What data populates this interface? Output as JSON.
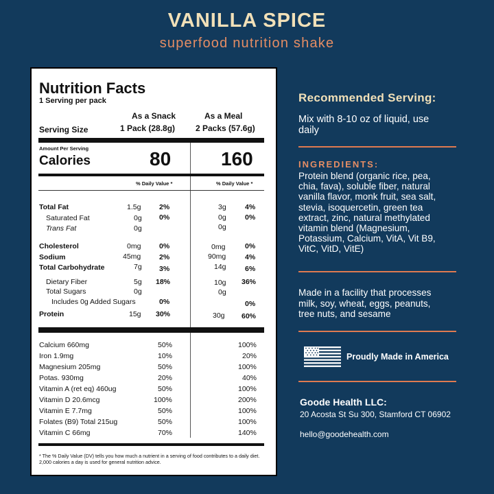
{
  "header": {
    "title": "VANILLA SPICE",
    "subtitle": "superfood nutrition shake"
  },
  "label": {
    "title": "Nutrition Facts",
    "servings": "1 Serving per pack",
    "col_snack_title": "As a Snack",
    "col_snack_sub": "1 Pack (28.8g)",
    "col_meal_title": "As a Meal",
    "col_meal_sub": "2 Packs (57.6g)",
    "serving_size": "Serving Size",
    "amount_per_serving": "Amount Per Serving",
    "calories_label": "Calories",
    "calories_snack": "80",
    "calories_meal": "160",
    "dv_header": "% Daily Value *",
    "nutrients": [
      {
        "name": "Total Fat",
        "s_amt": "1.5g",
        "s_dv": "2%",
        "m_amt": "3g",
        "m_dv": "4%"
      },
      {
        "name": "Saturated Fat",
        "s_amt": "0g",
        "s_dv": "0%",
        "m_amt": "0g",
        "m_dv": "0%"
      },
      {
        "name": "Trans Fat",
        "s_amt": "0g",
        "s_dv": "",
        "m_amt": "0g",
        "m_dv": ""
      },
      {
        "name": "Cholesterol",
        "s_amt": "0mg",
        "s_dv": "0%",
        "m_amt": "0mg",
        "m_dv": "0%"
      },
      {
        "name": "Sodium",
        "s_amt": "45mg",
        "s_dv": "2%",
        "m_amt": "90mg",
        "m_dv": "4%"
      },
      {
        "name": "Total Carbohydrate",
        "s_amt": "7g",
        "s_dv": "3%",
        "m_amt": "14g",
        "m_dv": "6%"
      },
      {
        "name": "Dietary Fiber",
        "s_amt": "5g",
        "s_dv": "18%",
        "m_amt": "10g",
        "m_dv": "36%"
      },
      {
        "name": "Total Sugars",
        "s_amt": "0g",
        "s_dv": "",
        "m_amt": "0g",
        "m_dv": ""
      },
      {
        "name": "Includes 0g Added Sugars",
        "s_amt": "",
        "s_dv": "0%",
        "m_amt": "",
        "m_dv": "0%"
      },
      {
        "name": "Protein",
        "s_amt": "15g",
        "s_dv": "30%",
        "m_amt": "30g",
        "m_dv": "60%"
      }
    ],
    "vitamins": [
      {
        "name": "Calcium 660mg",
        "s": "50%",
        "m": "100%"
      },
      {
        "name": "Iron 1.9mg",
        "s": "10%",
        "m": "20%"
      },
      {
        "name": "Magnesium 205mg",
        "s": "50%",
        "m": "100%"
      },
      {
        "name": "Potas. 930mg",
        "s": "20%",
        "m": "40%"
      },
      {
        "name": "Vitamin A (ret eq) 460ug",
        "s": "50%",
        "m": "100%"
      },
      {
        "name": "Vitamin D 20.6mcg",
        "s": "100%",
        "m": "200%"
      },
      {
        "name": "Vitamin E 7.7mg",
        "s": "50%",
        "m": "100%"
      },
      {
        "name": "Folates (B9) Total 215ug",
        "s": "50%",
        "m": "100%"
      },
      {
        "name": "Vitamin C 66mg",
        "s": "70%",
        "m": "140%"
      }
    ],
    "footnote_1": "* The % Daily Value (DV) tells you how much a nutrient in a serving of food contributes to a daily diet.",
    "footnote_2": "2,000 calories a day is used for general nutrition advice."
  },
  "right": {
    "serving_heading": "Recommended Serving:",
    "serving_text_1": "Mix with 8-10 oz of liquid, use",
    "serving_text_2": "daily",
    "ingredients_heading": "INGREDIENTS:",
    "ingredients_lines": [
      "Protein blend (organic rice, pea,",
      "chia, fava), soluble fiber, natural",
      "vanilla flavor, monk fruit, sea salt,",
      "stevia, isoquercetin, green tea",
      "extract, zinc, natural methylated",
      "vitamin blend (Magnesium,",
      "Potassium, Calcium, VitA, Vit B9,",
      "VitC, VitD, VitE)"
    ],
    "facility_lines": [
      "Made in a facility that processes",
      "milk, soy, wheat, eggs, peanuts,",
      "tree nuts, and sesame"
    ],
    "made_in": "Proudly Made in America",
    "flag_icon": "us-flag-icon",
    "company": "Goode Health LLC:",
    "address": "20 Acosta St Su 300, Stamford CT 06902",
    "email": "hello@goodehealth.com"
  },
  "colors": {
    "background": "#123a5c",
    "title": "#f1e0b8",
    "accent": "#e58d64"
  }
}
